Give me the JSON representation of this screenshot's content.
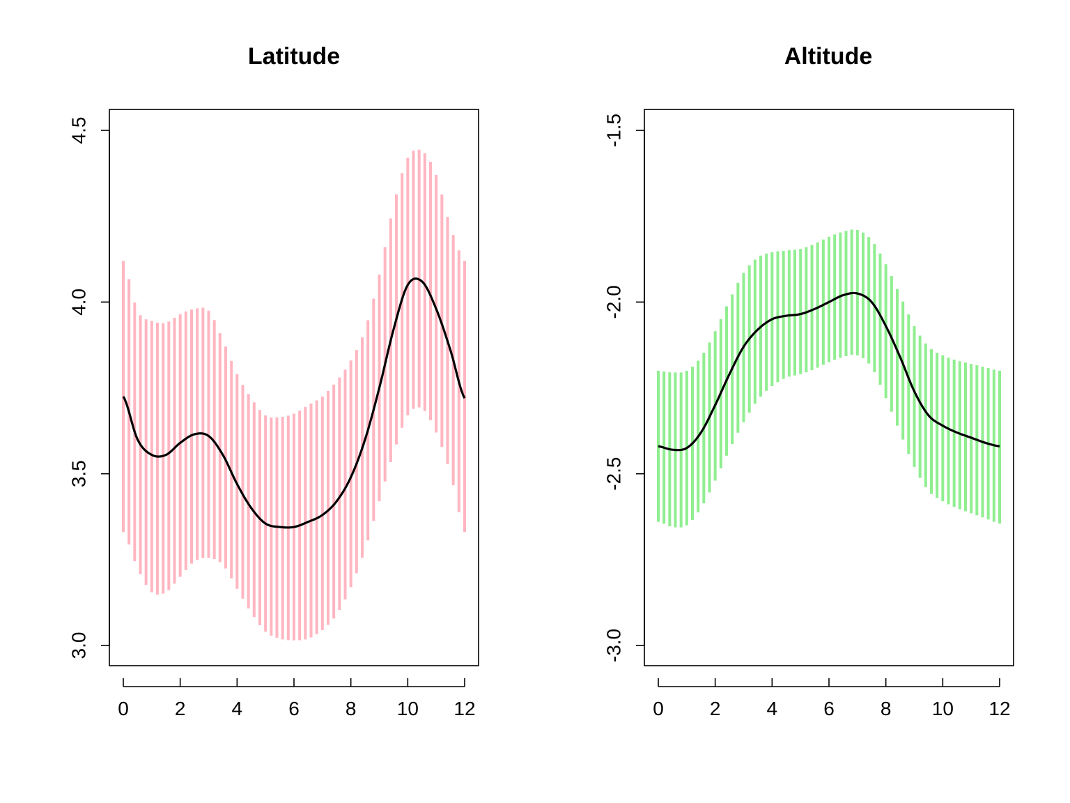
{
  "chart_data": [
    {
      "type": "line",
      "title": "Latitude",
      "xlabel": "",
      "ylabel": "",
      "xlim": [
        0,
        12
      ],
      "ylim": [
        3.0,
        4.5
      ],
      "x_ticks": [
        "0",
        "2",
        "4",
        "6",
        "8",
        "10",
        "12"
      ],
      "y_ticks": [
        "3.0",
        "3.5",
        "4.0",
        "4.5"
      ],
      "band_color": "#ffb6c1",
      "line_color": "#000000",
      "grid": false,
      "legend": "none",
      "x": [
        0,
        0.5,
        1,
        1.5,
        2,
        2.5,
        3,
        3.5,
        4,
        4.5,
        5,
        5.5,
        6,
        6.5,
        7,
        7.5,
        8,
        8.5,
        9,
        9.5,
        10,
        10.5,
        11,
        11.5,
        12
      ],
      "y": [
        3.725,
        3.6,
        3.555,
        3.555,
        3.59,
        3.615,
        3.61,
        3.555,
        3.47,
        3.4,
        3.355,
        3.345,
        3.345,
        3.36,
        3.38,
        3.42,
        3.49,
        3.6,
        3.75,
        3.92,
        4.05,
        4.06,
        3.98,
        3.86,
        3.72
      ],
      "lower": [
        3.33,
        3.225,
        3.155,
        3.155,
        3.2,
        3.245,
        3.255,
        3.235,
        3.165,
        3.095,
        3.04,
        3.02,
        3.015,
        3.02,
        3.045,
        3.09,
        3.17,
        3.28,
        3.42,
        3.56,
        3.67,
        3.69,
        3.62,
        3.5,
        3.33
      ],
      "upper": [
        4.12,
        3.975,
        3.945,
        3.94,
        3.965,
        3.98,
        3.975,
        3.89,
        3.79,
        3.72,
        3.67,
        3.665,
        3.675,
        3.7,
        3.725,
        3.77,
        3.83,
        3.92,
        4.08,
        4.28,
        4.42,
        4.44,
        4.37,
        4.22,
        4.12
      ]
    },
    {
      "type": "line",
      "title": "Altitude",
      "xlabel": "",
      "ylabel": "",
      "xlim": [
        0,
        12
      ],
      "ylim": [
        -3.0,
        -1.5
      ],
      "x_ticks": [
        "0",
        "2",
        "4",
        "6",
        "8",
        "10",
        "12"
      ],
      "y_ticks": [
        "-3.0",
        "-2.5",
        "-2.0",
        "-1.5"
      ],
      "band_color": "#90ee90",
      "line_color": "#000000",
      "grid": false,
      "legend": "none",
      "x": [
        0,
        0.5,
        1,
        1.5,
        2,
        2.5,
        3,
        3.5,
        4,
        4.5,
        5,
        5.5,
        6,
        6.5,
        7,
        7.5,
        8,
        8.5,
        9,
        9.5,
        10,
        10.5,
        11,
        11.5,
        12
      ],
      "y": [
        -2.42,
        -2.43,
        -2.425,
        -2.38,
        -2.3,
        -2.21,
        -2.13,
        -2.08,
        -2.05,
        -2.04,
        -2.035,
        -2.02,
        -2.0,
        -1.98,
        -1.975,
        -2.0,
        -2.07,
        -2.16,
        -2.26,
        -2.33,
        -2.36,
        -2.38,
        -2.395,
        -2.41,
        -2.42
      ],
      "lower": [
        -2.64,
        -2.655,
        -2.65,
        -2.6,
        -2.52,
        -2.43,
        -2.35,
        -2.285,
        -2.245,
        -2.22,
        -2.21,
        -2.195,
        -2.175,
        -2.16,
        -2.155,
        -2.19,
        -2.28,
        -2.38,
        -2.48,
        -2.55,
        -2.58,
        -2.6,
        -2.615,
        -2.63,
        -2.645
      ],
      "upper": [
        -2.2,
        -2.205,
        -2.2,
        -2.16,
        -2.085,
        -1.995,
        -1.915,
        -1.87,
        -1.855,
        -1.85,
        -1.845,
        -1.83,
        -1.81,
        -1.795,
        -1.79,
        -1.82,
        -1.89,
        -1.98,
        -2.07,
        -2.13,
        -2.155,
        -2.17,
        -2.18,
        -2.19,
        -2.2
      ]
    }
  ]
}
